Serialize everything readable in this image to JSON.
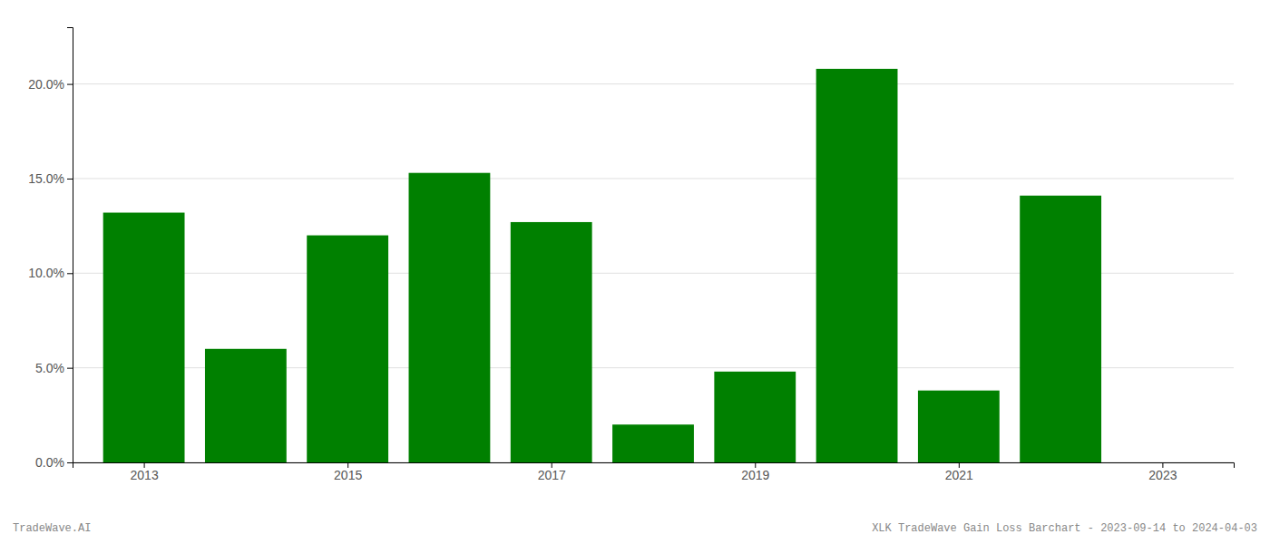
{
  "chart_data": {
    "type": "bar",
    "x": [
      2013,
      2014,
      2015,
      2016,
      2017,
      2018,
      2019,
      2020,
      2021,
      2022
    ],
    "values": [
      0.132,
      0.06,
      0.12,
      0.153,
      0.127,
      0.02,
      0.048,
      0.208,
      0.038,
      0.141
    ],
    "color": "#008000",
    "xlim": [
      2012.3,
      2023.7
    ],
    "xticks": [
      2013,
      2015,
      2017,
      2019,
      2021,
      2023
    ],
    "ylim": [
      0,
      0.23
    ],
    "yticks": [
      {
        "value": 0.0,
        "label": "0.0%"
      },
      {
        "value": 0.05,
        "label": "5.0%"
      },
      {
        "value": 0.1,
        "label": "10.0%"
      },
      {
        "value": 0.15,
        "label": "15.0%"
      },
      {
        "value": 0.2,
        "label": "20.0%"
      }
    ],
    "grid": true,
    "annotations": [
      "TradeWave.AI",
      "XLK TradeWave Gain Loss Barchart - 2023-09-14 to 2024-04-03"
    ]
  }
}
